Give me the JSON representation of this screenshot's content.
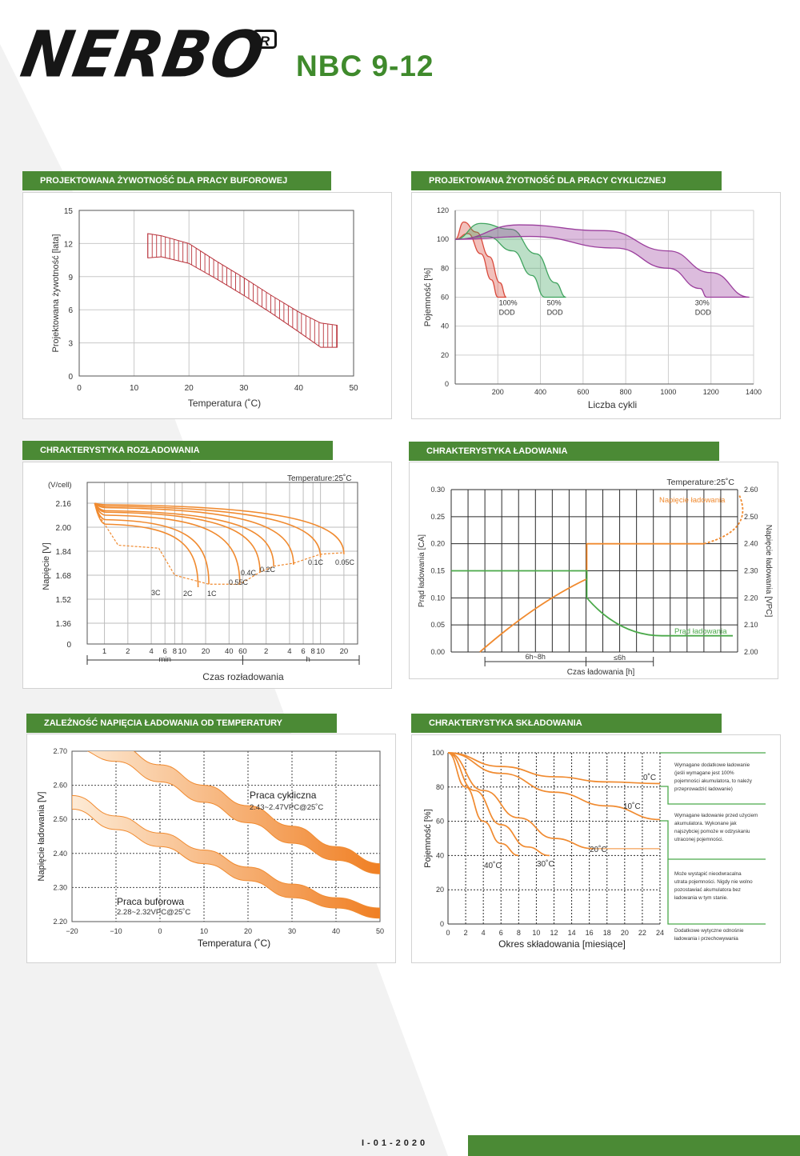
{
  "brand": {
    "logo": "NERBO",
    "registered": "R",
    "model": "NBC 9-12",
    "green": "#4b8a35"
  },
  "footer": {
    "code": "I-01-2020"
  },
  "panels": {
    "float_life": {
      "title": "PROJEKTOWANA ŻYWOTNOŚĆ DLA PRACY BUFOROWEJ"
    },
    "cycle_life": {
      "title": "PROJEKTOWANA ŻYOTNOŚĆ DLA PRACY CYKLICZNEJ"
    },
    "discharge": {
      "title": "CHRAKTERYSTYKA ROZŁADOWANIA"
    },
    "charge": {
      "title": "CHRAKTERYSTYKA ŁADOWANIA"
    },
    "temp_voltage": {
      "title": "ZALEŻNOŚĆ NAPIĘCIA ŁADOWANIA OD TEMPERATURY"
    },
    "storage": {
      "title": "CHRAKTERYSTYKA SKŁADOWANIA"
    }
  },
  "chart_data": [
    {
      "id": "float_life",
      "type": "area",
      "xlabel": "Temperatura (˚C)",
      "ylabel": "Projektowana żywotność [lata]",
      "xlim": [
        0,
        50
      ],
      "ylim": [
        0,
        15
      ],
      "xticks": [
        "0",
        "10",
        "20",
        "30",
        "40",
        "50"
      ],
      "yticks": [
        "0",
        "3",
        "6",
        "9",
        "12",
        "15"
      ],
      "band": {
        "x": [
          12.5,
          15,
          20,
          25,
          30,
          35,
          40,
          44,
          47
        ],
        "upper": [
          12.9,
          12.7,
          12.0,
          10.4,
          8.9,
          7.3,
          5.8,
          4.8,
          4.6
        ],
        "lower": [
          10.7,
          10.8,
          10.2,
          8.8,
          7.3,
          5.7,
          4.0,
          2.6,
          2.6
        ]
      },
      "color": "#b8323a",
      "grid": true
    },
    {
      "id": "cycle_life",
      "type": "area",
      "xlabel": "Liczba cykli",
      "ylabel": "Pojemność [%]",
      "xlim": [
        0,
        1400
      ],
      "ylim": [
        0,
        120
      ],
      "xticks": [
        "200",
        "400",
        "600",
        "800",
        "1000",
        "1200",
        "1400"
      ],
      "yticks": [
        "0",
        "20",
        "40",
        "60",
        "80",
        "100",
        "120"
      ],
      "series": [
        {
          "name": "100%\nDOD",
          "color": "#d94a3c",
          "x_upper": [
            0,
            40,
            100,
            160,
            210,
            240
          ],
          "y_upper": [
            100,
            112,
            105,
            88,
            70,
            60
          ],
          "x_lower": [
            0,
            60,
            120,
            170,
            200
          ],
          "y_lower": [
            100,
            104,
            90,
            72,
            60
          ]
        },
        {
          "name": "50%\nDOD",
          "color": "#3fa35e",
          "x_upper": [
            0,
            120,
            260,
            380,
            470,
            520
          ],
          "y_upper": [
            100,
            111,
            107,
            90,
            70,
            60
          ],
          "x_lower": [
            0,
            150,
            270,
            360,
            420
          ],
          "y_lower": [
            100,
            102,
            92,
            75,
            60
          ]
        },
        {
          "name": "30%\nDOD",
          "color": "#9b3f9d",
          "x_upper": [
            0,
            300,
            700,
            1000,
            1200,
            1380
          ],
          "y_upper": [
            100,
            110,
            106,
            92,
            77,
            60
          ],
          "x_lower": [
            0,
            350,
            750,
            1000,
            1150,
            1180
          ],
          "y_lower": [
            100,
            102,
            94,
            80,
            66,
            60
          ]
        }
      ],
      "grid": true
    },
    {
      "id": "discharge",
      "type": "line",
      "xlabel": "Czas rozładowania",
      "ylabel": "Napięcie [V]",
      "unit": "(V/cell)",
      "annotation": "Temperature:25˚C",
      "yticks": [
        "0",
        "1.36",
        "1.52",
        "1.68",
        "1.84",
        "2.00",
        "2.16"
      ],
      "xticks_min": [
        "1",
        "2",
        "4",
        "6",
        "8",
        "10",
        "20",
        "40",
        "60"
      ],
      "xticks_h": [
        "2",
        "4",
        "6",
        "8",
        "10",
        "20"
      ],
      "axis_groups": [
        "min",
        "h"
      ],
      "series": [
        {
          "name": "3C",
          "v_start": 2.02,
          "t_end_min": 16,
          "v_end": 1.6
        },
        {
          "name": "2C",
          "v_start": 2.05,
          "t_end_min": 22,
          "v_end": 1.62
        },
        {
          "name": "1C",
          "v_start": 2.08,
          "t_end_min": 55,
          "v_end": 1.62
        },
        {
          "name": "0.55C",
          "v_start": 2.1,
          "t_end_min": 100,
          "v_end": 1.7
        },
        {
          "name": "0.4C",
          "v_start": 2.11,
          "t_end_min": 150,
          "v_end": 1.74
        },
        {
          "name": "0.2C",
          "v_start": 2.13,
          "t_end_min": 270,
          "v_end": 1.75
        },
        {
          "name": "0.1C",
          "v_start": 2.14,
          "t_end_min": 600,
          "v_end": 1.8
        },
        {
          "name": "0.05C",
          "v_start": 2.15,
          "t_end_min": 1200,
          "v_end": 1.82
        }
      ],
      "color": "#f08a2f",
      "grid": true
    },
    {
      "id": "charge",
      "type": "line",
      "xlabel": "Czas ładowania [h]",
      "ylabel": "Prąd ładowania [CA]",
      "ylabel2": "Napięcie ładowania [VPC]",
      "annotation": "Temperature:25˚C",
      "yticks": [
        "0.00",
        "0.05",
        "0.10",
        "0.15",
        "0.20",
        "0.25",
        "0.30"
      ],
      "yticks2": [
        "2.00",
        "2.10",
        "2.20",
        "2.30",
        "2.40",
        "2.50",
        "2.60"
      ],
      "segments": [
        "6h~8h",
        "≤6h"
      ],
      "series": [
        {
          "name": "Napięcie ładowania",
          "color": "#f08a2f",
          "points": [
            [
              0,
              2.0
            ],
            [
              6.5,
              2.27
            ],
            [
              8,
              2.4
            ],
            [
              15,
              2.4
            ],
            [
              19.5,
              2.58
            ]
          ]
        },
        {
          "name": "Prąd ładowania",
          "color": "#4ba94a",
          "points": [
            [
              -2,
              0.15
            ],
            [
              8,
              0.15
            ],
            [
              8,
              0.1
            ],
            [
              12,
              0.03
            ],
            [
              19,
              0.03
            ]
          ]
        }
      ],
      "grid": true
    },
    {
      "id": "temp_voltage",
      "type": "area",
      "xlabel": "Temperatura (˚C)",
      "ylabel": "Napięcie ładowania [V]",
      "xlim": [
        -20,
        50
      ],
      "ylim": [
        2.2,
        2.7
      ],
      "xticks": [
        "−20",
        "−10",
        "0",
        "10",
        "20",
        "30",
        "40",
        "50"
      ],
      "yticks": [
        "2.20",
        "2.30",
        "2.40",
        "2.50",
        "2.60",
        "2.70"
      ],
      "series": [
        {
          "name": "Praca cykliczna",
          "range": "2.43~2.47VPC@25˚C",
          "x": [
            -20,
            -10,
            0,
            10,
            20,
            30,
            40,
            50
          ],
          "upper": [
            2.75,
            2.72,
            2.66,
            2.6,
            2.54,
            2.48,
            2.42,
            2.37
          ],
          "lower": [
            2.71,
            2.67,
            2.61,
            2.55,
            2.49,
            2.43,
            2.38,
            2.34
          ]
        },
        {
          "name": "Praca buforowa",
          "range": "2.28~2.32VPC@25˚C",
          "x": [
            -20,
            -10,
            0,
            10,
            20,
            30,
            40,
            50
          ],
          "upper": [
            2.57,
            2.51,
            2.46,
            2.41,
            2.36,
            2.31,
            2.27,
            2.24
          ],
          "lower": [
            2.53,
            2.47,
            2.42,
            2.37,
            2.32,
            2.27,
            2.24,
            2.21
          ]
        }
      ],
      "color": "#f08a2f",
      "grid": true
    },
    {
      "id": "storage",
      "type": "line",
      "xlabel": "Okres składowania [miesiące]",
      "ylabel": "Pojemność [%]",
      "xlim": [
        0,
        24
      ],
      "ylim": [
        0,
        100
      ],
      "xticks": [
        "0",
        "2",
        "4",
        "6",
        "8",
        "10",
        "12",
        "14",
        "16",
        "18",
        "20",
        "22",
        "24"
      ],
      "yticks": [
        "0",
        "20",
        "40",
        "60",
        "80",
        "100"
      ],
      "series": [
        {
          "name": "0˚C",
          "x": [
            0,
            6,
            12,
            18,
            24
          ],
          "y": [
            100,
            92,
            86,
            83,
            82
          ]
        },
        {
          "name": "10˚C",
          "x": [
            0,
            6,
            12,
            18,
            24
          ],
          "y": [
            100,
            88,
            77,
            69,
            61
          ]
        },
        {
          "name": "20˚C",
          "x": [
            0,
            4,
            8,
            12,
            16.5
          ],
          "y": [
            100,
            78,
            62,
            50,
            44
          ]
        },
        {
          "name": "30˚C",
          "x": [
            0,
            3,
            6,
            9,
            11.5
          ],
          "y": [
            100,
            78,
            58,
            45,
            40
          ]
        },
        {
          "name": "40˚C",
          "x": [
            0,
            2,
            4,
            6,
            8
          ],
          "y": [
            100,
            80,
            60,
            47,
            40
          ]
        }
      ],
      "color": "#f08a2f",
      "grid": true,
      "notes": [
        "Wymagane dodatkowe ładowanie\n(jeśli wymagane jest 100%\npojemności akumulatora, to należy\nprzeprowadzić ładowanie)",
        "Wymagane ładowanie przed użyciem\nakumulatora. Wykonane jak\nnajszybciej pomoże w odzyskaniu\nutraconej pojemności.",
        "Może wystąpić nieodwracalna\nutrata pojemności. Nigdy nie wolno\npozostawiać akumulatora bez\nładowania w tym stanie.",
        "Dodatkowe wytyczne odnośnie\nładowania i przechowywania"
      ]
    }
  ]
}
